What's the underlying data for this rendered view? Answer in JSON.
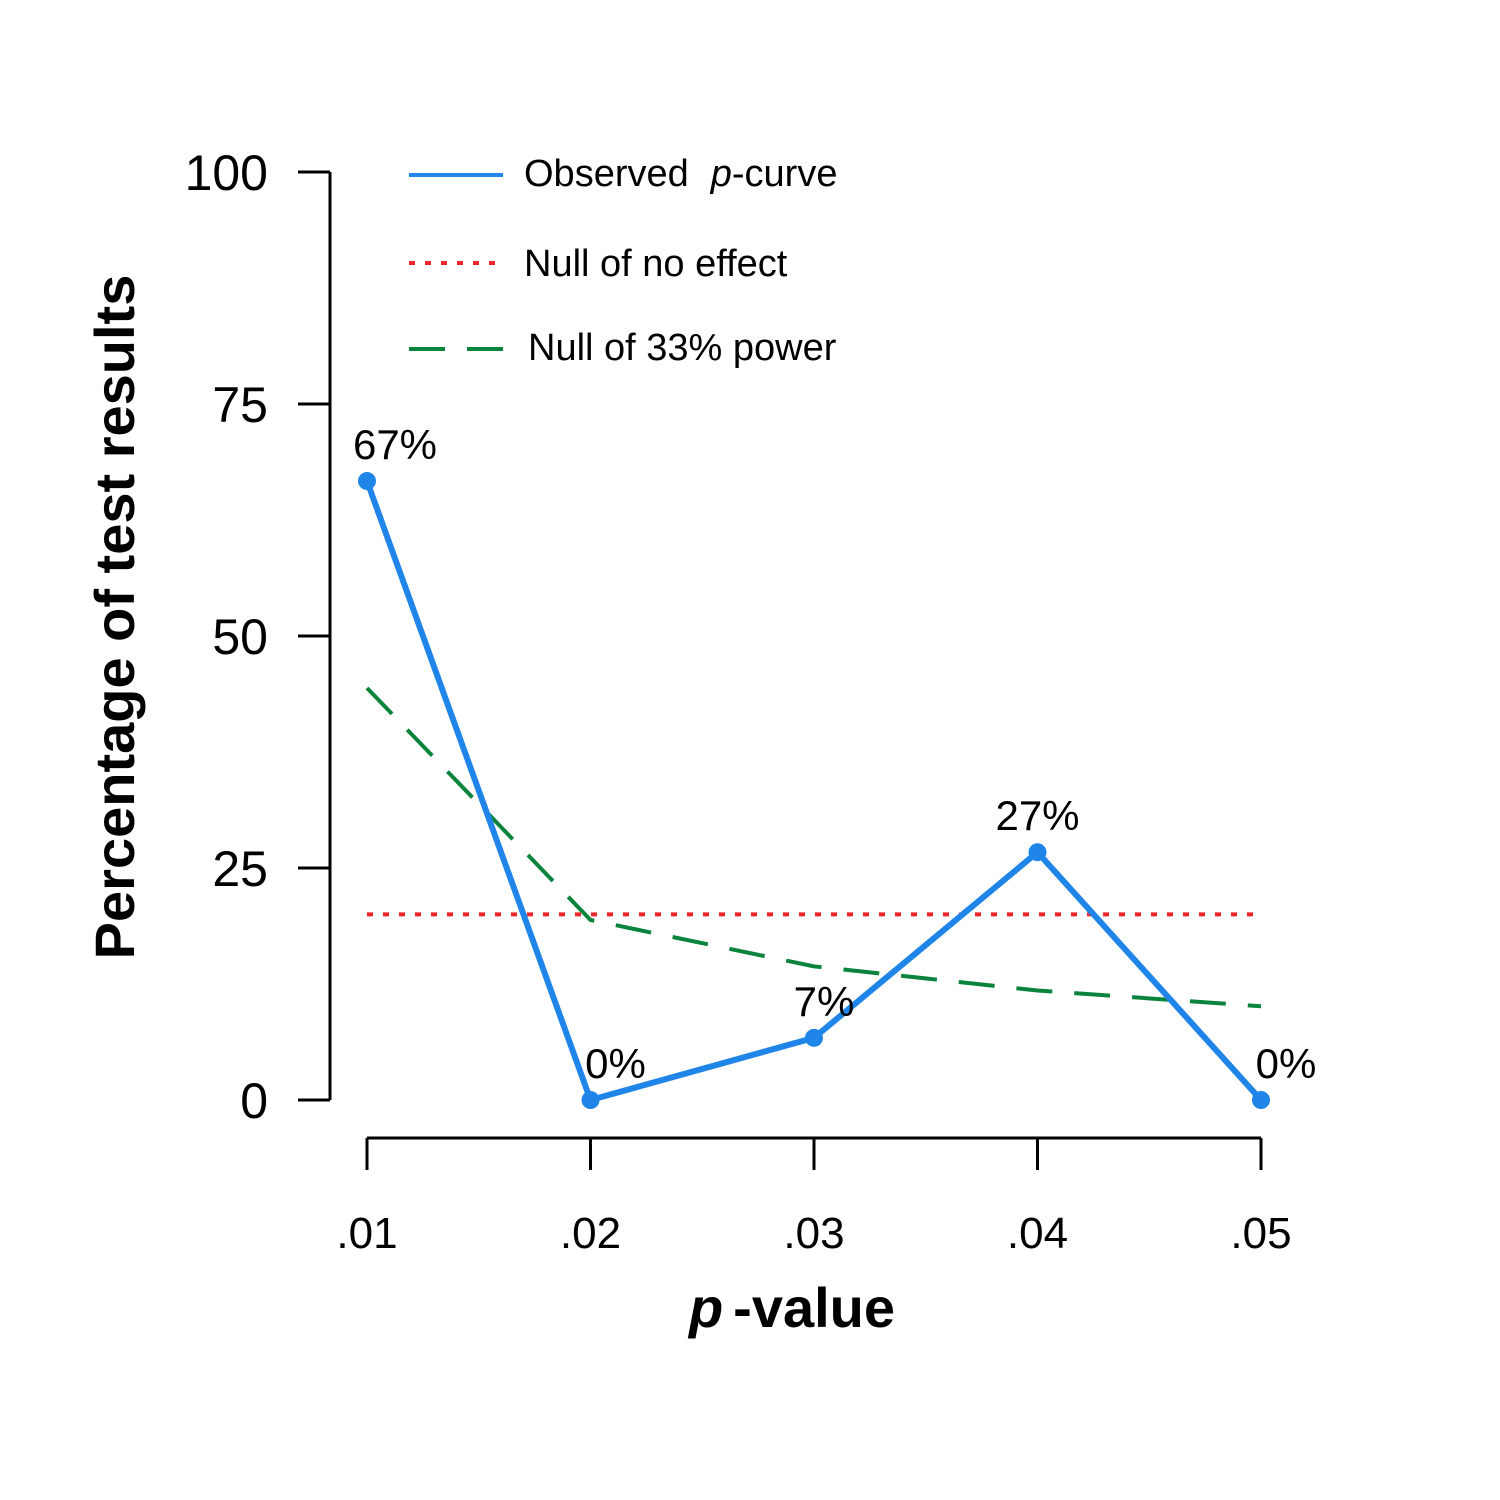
{
  "chart_data": {
    "type": "line",
    "xlabel_italic": "p",
    "xlabel_rest": "-value",
    "ylabel": "Percentage of test results",
    "ylim": [
      0,
      100
    ],
    "y_ticks": [
      "0",
      "25",
      "50",
      "75",
      "100"
    ],
    "y_tick_values": [
      0,
      25,
      50,
      75,
      100
    ],
    "categories": [
      ".01",
      ".02",
      ".03",
      ".04",
      ".05"
    ],
    "grid": false,
    "legend_position": "top",
    "series": [
      {
        "key": "observed",
        "legend_main": "Observed",
        "legend_italic": "p",
        "legend_rest": "-curve",
        "color": "#1f85e8",
        "style": "solid",
        "markers": true,
        "values": [
          66.7,
          0,
          6.7,
          26.7,
          0
        ],
        "labels": [
          "67%",
          "0%",
          "7%",
          "27%",
          "0%"
        ]
      },
      {
        "key": "null_no_effect",
        "name": "Null of no effect",
        "color": "#e8282a",
        "style": "dotted",
        "values": [
          20,
          20,
          20,
          20,
          20
        ]
      },
      {
        "key": "null_33_power",
        "name": "Null of 33% power",
        "color": "#0a843d",
        "style": "dashed",
        "values": [
          44.4,
          19.4,
          14.4,
          11.8,
          10.1
        ]
      }
    ]
  }
}
